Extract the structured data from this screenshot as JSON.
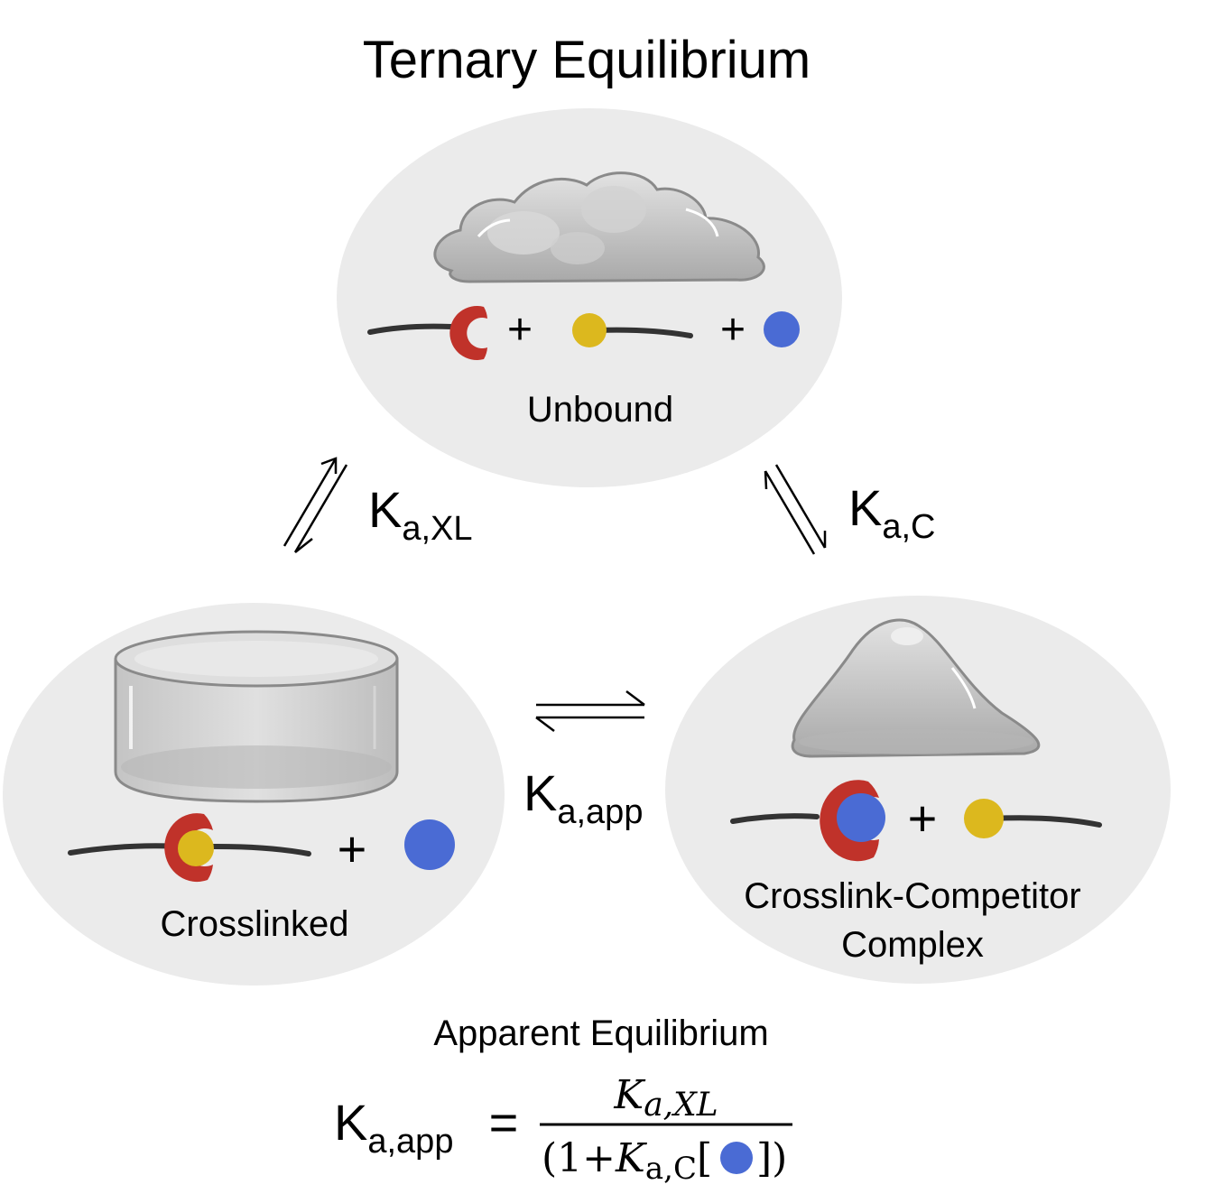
{
  "title": "Ternary Equilibrium",
  "states": {
    "unbound": {
      "label": "Unbound"
    },
    "crosslinked": {
      "label": "Crosslinked"
    },
    "complex": {
      "label_line1": "Crosslink-Competitor",
      "label_line2": "Complex"
    }
  },
  "plus_sign": "+",
  "constants": {
    "xl": {
      "main": "K",
      "sub": "a,XL"
    },
    "c": {
      "main": "K",
      "sub": "a,C"
    },
    "app": {
      "main": "K",
      "sub": "a,app"
    }
  },
  "equation": {
    "heading": "Apparent Equilibrium",
    "lhs_main": "K",
    "lhs_sub": "a,app",
    "equals": "=",
    "numerator_main": "K",
    "numerator_sub": "a,XL",
    "denominator_open": "(1+",
    "denominator_main": "K",
    "denominator_sub": "a,C",
    "denominator_bracket_open": "[",
    "denominator_bracket_close": "])"
  },
  "colors": {
    "bubble": "#ebebeb",
    "polymer": "#333333",
    "crosslinker_red": "#c0322a",
    "guest_yellow": "#dcb81e",
    "competitor_blue": "#4a6bd4",
    "gel_gray": "#c9c9c9"
  }
}
